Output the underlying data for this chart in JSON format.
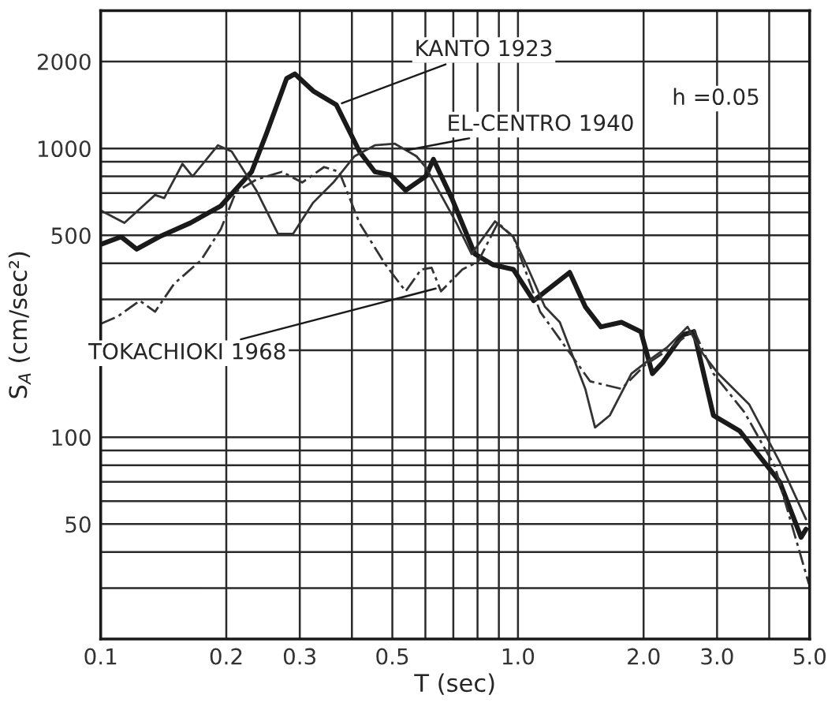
{
  "chart_data": {
    "type": "line",
    "xlabel": "T (sec)",
    "ylabel": "S$_{A}$ (cm/sec²)",
    "log": "xy",
    "grid": true,
    "legend": false,
    "marker": "none",
    "xlim": [
      0.1,
      5
    ],
    "ylim": [
      20,
      3000
    ],
    "xticks": [
      {
        "value": 0.1,
        "label": "0.1"
      },
      {
        "value": 0.2,
        "label": "0.2"
      },
      {
        "value": 0.3,
        "label": "0.3"
      },
      {
        "value": 0.4,
        "label": null
      },
      {
        "value": 0.5,
        "label": "0.5"
      },
      {
        "value": 0.6,
        "label": null
      },
      {
        "value": 0.7,
        "label": null
      },
      {
        "value": 0.8,
        "label": null
      },
      {
        "value": 0.9,
        "label": null
      },
      {
        "value": 1,
        "label": "1.0"
      },
      {
        "value": 2,
        "label": "2.0"
      },
      {
        "value": 3,
        "label": "3.0"
      },
      {
        "value": 4,
        "label": null
      },
      {
        "value": 5,
        "label": "5.0"
      }
    ],
    "yticks": [
      {
        "value": 30,
        "label": null
      },
      {
        "value": 40,
        "label": null
      },
      50,
      {
        "value": 60,
        "label": null
      },
      {
        "value": 70,
        "label": null
      },
      {
        "value": 80,
        "label": null
      },
      {
        "value": 90,
        "label": null
      },
      100,
      {
        "value": 200,
        "label": null
      },
      {
        "value": 300,
        "label": null
      },
      {
        "value": 400,
        "label": null
      },
      500,
      {
        "value": 600,
        "label": null
      },
      {
        "value": 700,
        "label": null
      },
      {
        "value": 800,
        "label": null
      },
      {
        "value": 900,
        "label": null
      },
      1000,
      2000
    ],
    "series": [
      {
        "color": "#1a1a1a",
        "line_style": "solid",
        "x": [
          0.1,
          0.112,
          0.122,
          0.138,
          0.164,
          0.194,
          0.23,
          0.25,
          0.279,
          0.292,
          0.323,
          0.367,
          0.417,
          0.454,
          0.494,
          0.538,
          0.601,
          0.627,
          0.694,
          0.788,
          0.873,
          0.975,
          1.09,
          1.33,
          1.45,
          1.58,
          1.77,
          1.97,
          2.1,
          2.22,
          2.48,
          2.64,
          2.94,
          3.4,
          3.79,
          4.24,
          4.77,
          4.9
        ],
        "values": [
          465,
          494,
          448,
          494,
          552,
          632,
          830,
          1132,
          1746,
          1811,
          1581,
          1416,
          976,
          830,
          811,
          716,
          800,
          917,
          673,
          431,
          395,
          381,
          297,
          372,
          283,
          241,
          250,
          232,
          166,
          181,
          226,
          232,
          119,
          105,
          86,
          70,
          45,
          48
        ]
      },
      {
        "color": "#333333",
        "line_style": "solid",
        "x": [
          0.1,
          0.114,
          0.135,
          0.142,
          0.157,
          0.166,
          0.191,
          0.206,
          0.236,
          0.266,
          0.289,
          0.323,
          0.361,
          0.406,
          0.454,
          0.507,
          0.571,
          0.601,
          0.712,
          0.774,
          0.881,
          0.975,
          1.06,
          1.16,
          1.26,
          1.45,
          1.53,
          1.66,
          1.87,
          2.04,
          2.28,
          2.55,
          2.77,
          3.02,
          3.58,
          4.24,
          4.9
        ],
        "values": [
          610,
          552,
          690,
          673,
          884,
          800,
          1025,
          976,
          716,
          506,
          506,
          649,
          762,
          940,
          1025,
          1038,
          940,
          862,
          552,
          431,
          559,
          494,
          381,
          283,
          250,
          147,
          108,
          119,
          166,
          183,
          205,
          241,
          195,
          166,
          130,
          82,
          52
        ]
      },
      {
        "color": "#333333",
        "line_style": "dashed",
        "x": [
          0.1,
          0.11,
          0.124,
          0.135,
          0.15,
          0.174,
          0.194,
          0.211,
          0.236,
          0.272,
          0.304,
          0.343,
          0.373,
          0.417,
          0.482,
          0.538,
          0.586,
          0.621,
          0.654,
          0.736,
          0.802,
          0.895,
          0.975,
          1.13,
          1.49,
          1.77,
          2.01,
          2.28,
          2.64,
          2.94,
          3.49,
          4.13,
          4.98
        ],
        "values": [
          247,
          262,
          297,
          272,
          340,
          410,
          525,
          707,
          780,
          830,
          762,
          862,
          830,
          552,
          395,
          320,
          381,
          386,
          320,
          381,
          405,
          552,
          494,
          272,
          156,
          147,
          177,
          200,
          235,
          166,
          122,
          79,
          31
        ]
      }
    ],
    "annotations": [
      {
        "text": "KANTO 1923",
        "x": 0.37,
        "y": 1416
      },
      {
        "text": "EL-CENTRO 1940",
        "x": 0.53,
        "y": 980
      },
      {
        "text": "TOKACHIOKI 1968",
        "x": 0.65,
        "y": 330
      },
      "h =0.05"
    ]
  }
}
